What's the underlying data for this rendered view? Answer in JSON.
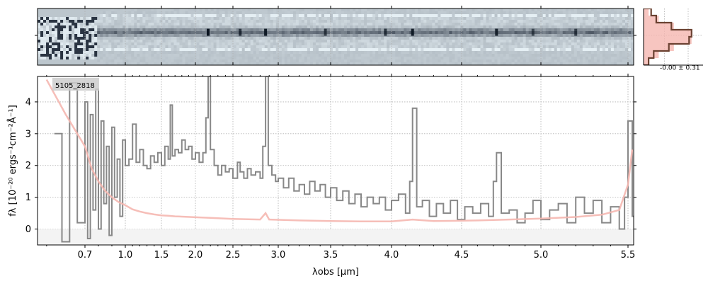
{
  "chart_data": [
    {
      "type": "heatmap",
      "panel": "2D spectrum",
      "colormap": "bone_r",
      "x_range": [
        0.58,
        5.52
      ],
      "trace_center_fraction": 0.42,
      "peaks": [
        {
          "x": 2.17,
          "strength": 1.0
        },
        {
          "x": 2.86,
          "strength": 0.9
        },
        {
          "x": 2.58,
          "strength": 0.6
        },
        {
          "x": 3.45,
          "strength": 0.5
        },
        {
          "x": 3.95,
          "strength": 0.55
        },
        {
          "x": 4.15,
          "strength": 0.9
        },
        {
          "x": 4.72,
          "strength": 0.8
        },
        {
          "x": 4.95,
          "strength": 0.4
        },
        {
          "x": 5.2,
          "strength": 0.5
        }
      ]
    },
    {
      "type": "histogram",
      "panel": "residual distribution",
      "label": "-0.00 ± 0.31",
      "bins": [
        -4,
        -3,
        -2,
        -1,
        0,
        1,
        2,
        3,
        4
      ],
      "data_counts": [
        0.15,
        0.25,
        0.55,
        0.95,
        0.9,
        0.5,
        0.2,
        0.1
      ],
      "model_counts": [
        0.1,
        0.3,
        0.6,
        0.95,
        0.95,
        0.6,
        0.3,
        0.1
      ],
      "colors": {
        "data": "#6b4232",
        "model": "#f5b7b0"
      }
    },
    {
      "type": "line",
      "panel": "1D spectrum",
      "annotation": "5105_2818",
      "xlabel": "λobs [μm]",
      "ylabel": "fλ [10⁻²⁰ ergs⁻¹cm⁻²Å⁻¹]",
      "xlim": [
        0.58,
        5.52
      ],
      "ylim": [
        -0.5,
        4.8
      ],
      "x_scale": "custom compressed blue end",
      "x_tick_labels": [
        "0.7",
        "1.0",
        "1.5",
        "2.0",
        "2.5",
        "3.0",
        "3.5",
        "4.0",
        "4.5",
        "5.0",
        "5.5"
      ],
      "x_ticks": [
        0.7,
        1.0,
        1.5,
        2.0,
        2.5,
        3.0,
        3.5,
        4.0,
        4.5,
        5.0,
        5.5
      ],
      "y_ticks": [
        0,
        1,
        2,
        3,
        4
      ],
      "grid": true,
      "series": [
        {
          "color": "#888888",
          "draw": "steps",
          "points": [
            [
              0.62,
              3.0
            ],
            [
              0.64,
              -0.4
            ],
            [
              0.66,
              4.6
            ],
            [
              0.68,
              0.2
            ],
            [
              0.7,
              4.0
            ],
            [
              0.72,
              -0.3
            ],
            [
              0.74,
              3.6
            ],
            [
              0.76,
              0.6
            ],
            [
              0.78,
              4.4
            ],
            [
              0.8,
              0.0
            ],
            [
              0.82,
              3.4
            ],
            [
              0.84,
              0.8
            ],
            [
              0.86,
              2.6
            ],
            [
              0.88,
              -0.2
            ],
            [
              0.9,
              3.2
            ],
            [
              0.92,
              1.0
            ],
            [
              0.94,
              2.2
            ],
            [
              0.96,
              0.4
            ],
            [
              0.98,
              2.8
            ],
            [
              1.0,
              2.0
            ],
            [
              1.05,
              2.2
            ],
            [
              1.1,
              3.3
            ],
            [
              1.15,
              2.1
            ],
            [
              1.2,
              2.5
            ],
            [
              1.25,
              2.0
            ],
            [
              1.3,
              1.9
            ],
            [
              1.35,
              2.3
            ],
            [
              1.4,
              2.1
            ],
            [
              1.45,
              2.4
            ],
            [
              1.5,
              2.0
            ],
            [
              1.55,
              2.6
            ],
            [
              1.6,
              2.2
            ],
            [
              1.63,
              3.9
            ],
            [
              1.66,
              2.3
            ],
            [
              1.7,
              2.5
            ],
            [
              1.75,
              2.4
            ],
            [
              1.8,
              2.8
            ],
            [
              1.85,
              2.5
            ],
            [
              1.9,
              2.6
            ],
            [
              1.95,
              2.2
            ],
            [
              2.0,
              2.4
            ],
            [
              2.05,
              2.1
            ],
            [
              2.1,
              2.4
            ],
            [
              2.14,
              3.5
            ],
            [
              2.17,
              4.8
            ],
            [
              2.2,
              2.5
            ],
            [
              2.25,
              2.0
            ],
            [
              2.3,
              1.7
            ],
            [
              2.35,
              2.0
            ],
            [
              2.4,
              1.8
            ],
            [
              2.45,
              1.9
            ],
            [
              2.5,
              1.6
            ],
            [
              2.55,
              2.1
            ],
            [
              2.58,
              1.8
            ],
            [
              2.62,
              1.6
            ],
            [
              2.66,
              1.9
            ],
            [
              2.7,
              1.7
            ],
            [
              2.75,
              1.8
            ],
            [
              2.8,
              1.6
            ],
            [
              2.83,
              2.6
            ],
            [
              2.86,
              4.8
            ],
            [
              2.89,
              2.0
            ],
            [
              2.93,
              1.7
            ],
            [
              2.97,
              1.5
            ],
            [
              3.0,
              1.6
            ],
            [
              3.05,
              1.3
            ],
            [
              3.1,
              1.6
            ],
            [
              3.15,
              1.2
            ],
            [
              3.2,
              1.4
            ],
            [
              3.25,
              1.1
            ],
            [
              3.3,
              1.5
            ],
            [
              3.35,
              1.2
            ],
            [
              3.4,
              1.4
            ],
            [
              3.45,
              1.0
            ],
            [
              3.5,
              1.3
            ],
            [
              3.55,
              0.9
            ],
            [
              3.6,
              1.2
            ],
            [
              3.65,
              0.8
            ],
            [
              3.7,
              1.1
            ],
            [
              3.75,
              0.7
            ],
            [
              3.8,
              1.0
            ],
            [
              3.85,
              0.8
            ],
            [
              3.9,
              1.0
            ],
            [
              3.95,
              0.6
            ],
            [
              4.0,
              0.9
            ],
            [
              4.05,
              1.1
            ],
            [
              4.1,
              0.5
            ],
            [
              4.13,
              1.5
            ],
            [
              4.15,
              3.8
            ],
            [
              4.18,
              0.7
            ],
            [
              4.22,
              0.9
            ],
            [
              4.27,
              0.4
            ],
            [
              4.32,
              0.8
            ],
            [
              4.37,
              0.5
            ],
            [
              4.42,
              0.9
            ],
            [
              4.47,
              0.3
            ],
            [
              4.52,
              0.7
            ],
            [
              4.57,
              0.5
            ],
            [
              4.62,
              0.8
            ],
            [
              4.67,
              0.4
            ],
            [
              4.7,
              1.5
            ],
            [
              4.72,
              2.4
            ],
            [
              4.75,
              0.5
            ],
            [
              4.8,
              0.6
            ],
            [
              4.85,
              0.2
            ],
            [
              4.9,
              0.5
            ],
            [
              4.95,
              0.9
            ],
            [
              5.0,
              0.3
            ],
            [
              5.05,
              0.6
            ],
            [
              5.1,
              0.8
            ],
            [
              5.15,
              0.2
            ],
            [
              5.2,
              1.0
            ],
            [
              5.25,
              0.5
            ],
            [
              5.3,
              0.9
            ],
            [
              5.35,
              0.2
            ],
            [
              5.4,
              0.7
            ],
            [
              5.45,
              0.0
            ],
            [
              5.48,
              1.0
            ],
            [
              5.5,
              3.4
            ],
            [
              5.52,
              0.4
            ]
          ]
        },
        {
          "color": "#f5b7b0",
          "draw": "line",
          "points": [
            [
              0.6,
              4.7
            ],
            [
              0.65,
              3.6
            ],
            [
              0.7,
              2.6
            ],
            [
              0.75,
              1.9
            ],
            [
              0.8,
              1.5
            ],
            [
              0.85,
              1.2
            ],
            [
              0.9,
              1.0
            ],
            [
              0.95,
              0.85
            ],
            [
              1.0,
              0.75
            ],
            [
              1.1,
              0.62
            ],
            [
              1.2,
              0.55
            ],
            [
              1.3,
              0.5
            ],
            [
              1.4,
              0.46
            ],
            [
              1.5,
              0.43
            ],
            [
              1.6,
              0.42
            ],
            [
              1.7,
              0.4
            ],
            [
              1.8,
              0.39
            ],
            [
              2.0,
              0.37
            ],
            [
              2.2,
              0.35
            ],
            [
              2.5,
              0.32
            ],
            [
              2.8,
              0.3
            ],
            [
              2.86,
              0.5
            ],
            [
              2.9,
              0.3
            ],
            [
              3.2,
              0.27
            ],
            [
              3.5,
              0.25
            ],
            [
              3.8,
              0.24
            ],
            [
              4.0,
              0.24
            ],
            [
              4.15,
              0.3
            ],
            [
              4.3,
              0.25
            ],
            [
              4.6,
              0.27
            ],
            [
              4.8,
              0.3
            ],
            [
              5.0,
              0.33
            ],
            [
              5.2,
              0.38
            ],
            [
              5.35,
              0.45
            ],
            [
              5.45,
              0.6
            ],
            [
              5.5,
              1.4
            ],
            [
              5.52,
              2.5
            ]
          ]
        }
      ]
    }
  ]
}
